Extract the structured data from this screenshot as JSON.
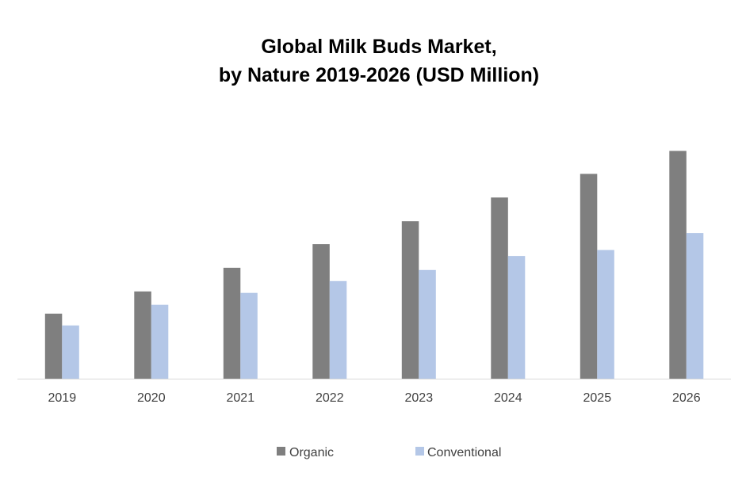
{
  "chart_data": {
    "type": "bar",
    "title_lines": [
      "Global Milk Buds Market,",
      "by Nature 2019-2026 (USD Million)"
    ],
    "xlabel": "",
    "ylabel": "",
    "categories": [
      "2019",
      "2020",
      "2021",
      "2022",
      "2023",
      "2024",
      "2025",
      "2026"
    ],
    "series": [
      {
        "name": "Organic",
        "color": "#7f7f7f",
        "values": [
          88,
          118,
          150,
          182,
          213,
          245,
          277,
          308
        ]
      },
      {
        "name": "Conventional",
        "color": "#b4c7e7",
        "values": [
          72,
          100,
          116,
          132,
          147,
          166,
          174,
          197
        ]
      }
    ],
    "ylim": [
      0,
      330
    ],
    "grid": false,
    "legend_position": "bottom"
  }
}
